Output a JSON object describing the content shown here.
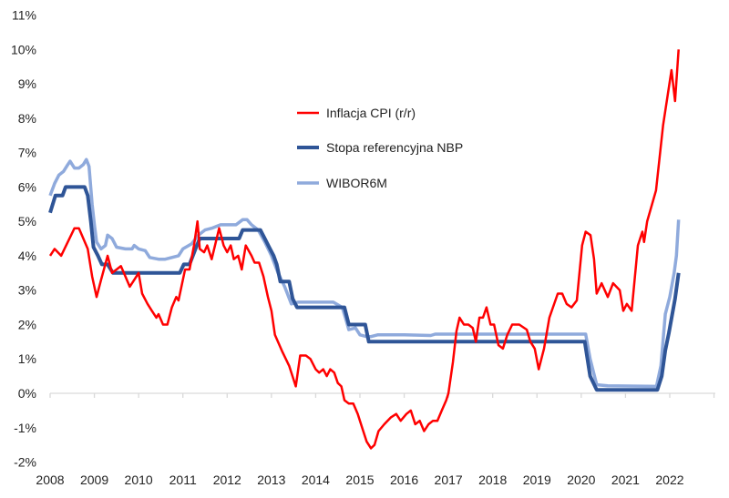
{
  "chart_data": {
    "type": "line",
    "title": "",
    "xlabel": "",
    "ylabel": "",
    "xlim": [
      2008,
      2023
    ],
    "ylim": [
      -2,
      11
    ],
    "grid": false,
    "legend_placement": "center-left inside plot",
    "x_ticks": [
      "2008",
      "2009",
      "2010",
      "2011",
      "2012",
      "2013",
      "2014",
      "2015",
      "2016",
      "2017",
      "2018",
      "2019",
      "2020",
      "2021",
      "2022"
    ],
    "y_ticks": [
      "-2%",
      "-1%",
      "0%",
      "1%",
      "2%",
      "3%",
      "4%",
      "5%",
      "6%",
      "7%",
      "8%",
      "9%",
      "10%",
      "11%"
    ],
    "series": [
      {
        "name": "Inflacja CPI (r/r)",
        "color": "#ff0000",
        "points": [
          [
            2008.0,
            4.0
          ],
          [
            2008.1,
            4.2
          ],
          [
            2008.25,
            4.0
          ],
          [
            2008.4,
            4.4
          ],
          [
            2008.55,
            4.8
          ],
          [
            2008.65,
            4.8
          ],
          [
            2008.85,
            4.2
          ],
          [
            2008.95,
            3.4
          ],
          [
            2009.05,
            2.8
          ],
          [
            2009.15,
            3.3
          ],
          [
            2009.3,
            4.0
          ],
          [
            2009.4,
            3.5
          ],
          [
            2009.5,
            3.6
          ],
          [
            2009.6,
            3.7
          ],
          [
            2009.7,
            3.4
          ],
          [
            2009.8,
            3.1
          ],
          [
            2009.9,
            3.3
          ],
          [
            2010.0,
            3.5
          ],
          [
            2010.08,
            2.9
          ],
          [
            2010.2,
            2.6
          ],
          [
            2010.3,
            2.4
          ],
          [
            2010.4,
            2.2
          ],
          [
            2010.45,
            2.3
          ],
          [
            2010.55,
            2.0
          ],
          [
            2010.65,
            2.0
          ],
          [
            2010.75,
            2.5
          ],
          [
            2010.85,
            2.8
          ],
          [
            2010.9,
            2.7
          ],
          [
            2011.05,
            3.6
          ],
          [
            2011.15,
            3.6
          ],
          [
            2011.25,
            4.3
          ],
          [
            2011.33,
            5.0
          ],
          [
            2011.38,
            4.2
          ],
          [
            2011.48,
            4.1
          ],
          [
            2011.55,
            4.3
          ],
          [
            2011.65,
            3.9
          ],
          [
            2011.82,
            4.8
          ],
          [
            2011.92,
            4.3
          ],
          [
            2012.0,
            4.1
          ],
          [
            2012.08,
            4.3
          ],
          [
            2012.15,
            3.9
          ],
          [
            2012.25,
            4.0
          ],
          [
            2012.33,
            3.6
          ],
          [
            2012.42,
            4.3
          ],
          [
            2012.55,
            4.0
          ],
          [
            2012.62,
            3.8
          ],
          [
            2012.72,
            3.8
          ],
          [
            2012.82,
            3.4
          ],
          [
            2012.92,
            2.8
          ],
          [
            2013.0,
            2.4
          ],
          [
            2013.08,
            1.7
          ],
          [
            2013.25,
            1.2
          ],
          [
            2013.4,
            0.8
          ],
          [
            2013.55,
            0.2
          ],
          [
            2013.65,
            1.1
          ],
          [
            2013.78,
            1.1
          ],
          [
            2013.88,
            1.0
          ],
          [
            2014.0,
            0.7
          ],
          [
            2014.08,
            0.6
          ],
          [
            2014.17,
            0.7
          ],
          [
            2014.25,
            0.5
          ],
          [
            2014.33,
            0.7
          ],
          [
            2014.42,
            0.6
          ],
          [
            2014.5,
            0.3
          ],
          [
            2014.58,
            0.2
          ],
          [
            2014.65,
            -0.2
          ],
          [
            2014.75,
            -0.3
          ],
          [
            2014.85,
            -0.3
          ],
          [
            2014.95,
            -0.6
          ],
          [
            2015.05,
            -1.0
          ],
          [
            2015.15,
            -1.4
          ],
          [
            2015.25,
            -1.6
          ],
          [
            2015.33,
            -1.5
          ],
          [
            2015.42,
            -1.1
          ],
          [
            2015.55,
            -0.9
          ],
          [
            2015.7,
            -0.7
          ],
          [
            2015.82,
            -0.6
          ],
          [
            2015.92,
            -0.8
          ],
          [
            2016.05,
            -0.6
          ],
          [
            2016.15,
            -0.5
          ],
          [
            2016.25,
            -0.9
          ],
          [
            2016.35,
            -0.8
          ],
          [
            2016.45,
            -1.1
          ],
          [
            2016.55,
            -0.9
          ],
          [
            2016.65,
            -0.8
          ],
          [
            2016.75,
            -0.8
          ],
          [
            2016.85,
            -0.5
          ],
          [
            2016.95,
            -0.2
          ],
          [
            2017.0,
            0.0
          ],
          [
            2017.1,
            0.9
          ],
          [
            2017.18,
            1.8
          ],
          [
            2017.25,
            2.2
          ],
          [
            2017.35,
            2.0
          ],
          [
            2017.45,
            2.0
          ],
          [
            2017.55,
            1.9
          ],
          [
            2017.62,
            1.5
          ],
          [
            2017.7,
            2.2
          ],
          [
            2017.78,
            2.2
          ],
          [
            2017.86,
            2.5
          ],
          [
            2017.95,
            2.0
          ],
          [
            2018.03,
            2.0
          ],
          [
            2018.13,
            1.4
          ],
          [
            2018.23,
            1.3
          ],
          [
            2018.33,
            1.7
          ],
          [
            2018.44,
            2.0
          ],
          [
            2018.6,
            2.0
          ],
          [
            2018.77,
            1.85
          ],
          [
            2018.85,
            1.5
          ],
          [
            2018.95,
            1.3
          ],
          [
            2019.04,
            0.7
          ],
          [
            2019.16,
            1.3
          ],
          [
            2019.28,
            2.2
          ],
          [
            2019.47,
            2.9
          ],
          [
            2019.57,
            2.9
          ],
          [
            2019.67,
            2.6
          ],
          [
            2019.78,
            2.5
          ],
          [
            2019.9,
            2.7
          ],
          [
            2020.02,
            4.3
          ],
          [
            2020.1,
            4.7
          ],
          [
            2020.21,
            4.6
          ],
          [
            2020.29,
            3.9
          ],
          [
            2020.35,
            2.9
          ],
          [
            2020.46,
            3.2
          ],
          [
            2020.6,
            2.8
          ],
          [
            2020.72,
            3.2
          ],
          [
            2020.87,
            3.0
          ],
          [
            2020.95,
            2.4
          ],
          [
            2021.03,
            2.6
          ],
          [
            2021.14,
            2.4
          ],
          [
            2021.28,
            4.3
          ],
          [
            2021.38,
            4.7
          ],
          [
            2021.42,
            4.4
          ],
          [
            2021.49,
            5.0
          ],
          [
            2021.69,
            5.9
          ],
          [
            2021.85,
            7.8
          ],
          [
            2022.04,
            9.4
          ],
          [
            2022.12,
            8.5
          ],
          [
            2022.2,
            10.0
          ]
        ]
      },
      {
        "name": "Stopa referencyjna NBP",
        "color": "#2f5597",
        "points": [
          [
            2008.0,
            5.25
          ],
          [
            2008.12,
            5.75
          ],
          [
            2008.28,
            5.75
          ],
          [
            2008.35,
            6.0
          ],
          [
            2008.78,
            6.0
          ],
          [
            2008.85,
            5.75
          ],
          [
            2008.92,
            5.0
          ],
          [
            2008.98,
            4.25
          ],
          [
            2009.08,
            4.0
          ],
          [
            2009.17,
            3.75
          ],
          [
            2009.3,
            3.75
          ],
          [
            2009.42,
            3.5
          ],
          [
            2010.93,
            3.5
          ],
          [
            2011.02,
            3.75
          ],
          [
            2011.15,
            3.75
          ],
          [
            2011.3,
            4.25
          ],
          [
            2011.38,
            4.5
          ],
          [
            2012.27,
            4.5
          ],
          [
            2012.35,
            4.75
          ],
          [
            2012.75,
            4.75
          ],
          [
            2012.85,
            4.5
          ],
          [
            2012.95,
            4.25
          ],
          [
            2013.05,
            4.0
          ],
          [
            2013.12,
            3.75
          ],
          [
            2013.2,
            3.25
          ],
          [
            2013.4,
            3.25
          ],
          [
            2013.48,
            2.75
          ],
          [
            2013.58,
            2.5
          ],
          [
            2014.65,
            2.5
          ],
          [
            2014.75,
            2.0
          ],
          [
            2015.12,
            2.0
          ],
          [
            2015.2,
            1.5
          ],
          [
            2020.08,
            1.5
          ],
          [
            2020.2,
            0.5
          ],
          [
            2020.35,
            0.1
          ],
          [
            2021.72,
            0.1
          ],
          [
            2021.82,
            0.5
          ],
          [
            2021.9,
            1.25
          ],
          [
            2021.98,
            1.75
          ],
          [
            2022.05,
            2.25
          ],
          [
            2022.12,
            2.75
          ],
          [
            2022.2,
            3.5
          ]
        ]
      },
      {
        "name": "WIBOR6M",
        "color": "#8faadc",
        "points": [
          [
            2008.0,
            5.75
          ],
          [
            2008.1,
            6.1
          ],
          [
            2008.2,
            6.35
          ],
          [
            2008.3,
            6.45
          ],
          [
            2008.4,
            6.65
          ],
          [
            2008.45,
            6.75
          ],
          [
            2008.55,
            6.55
          ],
          [
            2008.65,
            6.55
          ],
          [
            2008.75,
            6.65
          ],
          [
            2008.82,
            6.8
          ],
          [
            2008.88,
            6.6
          ],
          [
            2008.95,
            5.5
          ],
          [
            2009.0,
            4.9
          ],
          [
            2009.05,
            4.4
          ],
          [
            2009.15,
            4.2
          ],
          [
            2009.25,
            4.3
          ],
          [
            2009.3,
            4.6
          ],
          [
            2009.4,
            4.5
          ],
          [
            2009.5,
            4.25
          ],
          [
            2009.7,
            4.2
          ],
          [
            2009.85,
            4.2
          ],
          [
            2009.9,
            4.3
          ],
          [
            2010.0,
            4.2
          ],
          [
            2010.15,
            4.15
          ],
          [
            2010.25,
            3.95
          ],
          [
            2010.45,
            3.9
          ],
          [
            2010.6,
            3.9
          ],
          [
            2010.75,
            3.95
          ],
          [
            2010.9,
            4.0
          ],
          [
            2011.0,
            4.2
          ],
          [
            2011.2,
            4.35
          ],
          [
            2011.35,
            4.6
          ],
          [
            2011.5,
            4.75
          ],
          [
            2011.65,
            4.8
          ],
          [
            2011.85,
            4.9
          ],
          [
            2012.05,
            4.9
          ],
          [
            2012.2,
            4.9
          ],
          [
            2012.35,
            5.05
          ],
          [
            2012.45,
            5.05
          ],
          [
            2012.55,
            4.9
          ],
          [
            2012.7,
            4.75
          ],
          [
            2012.85,
            4.4
          ],
          [
            2013.0,
            4.0
          ],
          [
            2013.15,
            3.5
          ],
          [
            2013.3,
            3.1
          ],
          [
            2013.45,
            2.6
          ],
          [
            2013.6,
            2.65
          ],
          [
            2014.0,
            2.65
          ],
          [
            2014.4,
            2.65
          ],
          [
            2014.6,
            2.5
          ],
          [
            2014.67,
            2.2
          ],
          [
            2014.75,
            1.85
          ],
          [
            2014.9,
            1.9
          ],
          [
            2015.0,
            1.7
          ],
          [
            2015.15,
            1.65
          ],
          [
            2015.25,
            1.65
          ],
          [
            2015.4,
            1.7
          ],
          [
            2016.0,
            1.7
          ],
          [
            2016.6,
            1.68
          ],
          [
            2016.7,
            1.72
          ],
          [
            2020.1,
            1.72
          ],
          [
            2020.2,
            1.0
          ],
          [
            2020.35,
            0.25
          ],
          [
            2020.6,
            0.22
          ],
          [
            2021.7,
            0.2
          ],
          [
            2021.8,
            0.8
          ],
          [
            2021.9,
            2.3
          ],
          [
            2022.0,
            2.8
          ],
          [
            2022.1,
            3.5
          ],
          [
            2022.15,
            4.0
          ],
          [
            2022.2,
            5.05
          ]
        ]
      }
    ]
  }
}
